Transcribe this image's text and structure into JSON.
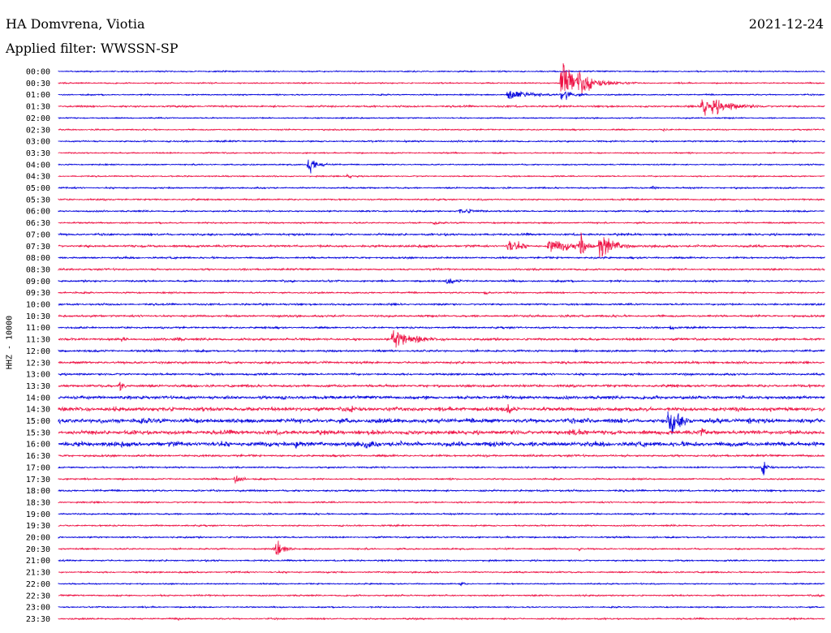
{
  "header": {
    "station": "HA Domvrena, Viotia",
    "date": "2021-12-24",
    "filter": "Applied filter: WWSSN-SP"
  },
  "channel_label": "HHZ - 10000",
  "colors": {
    "trace_a": "#0000dd",
    "trace_b": "#ee1144",
    "background": "#ffffff",
    "text": "#000000"
  },
  "chart_data": {
    "type": "line",
    "title": "HA Domvrena, Viotia",
    "ylabel": "HHZ - 10000",
    "xlabel": "",
    "grid": false,
    "rows": [
      {
        "time": "00:00",
        "color": "trace_a",
        "noise": 0.5
      },
      {
        "time": "00:30",
        "color": "trace_b",
        "noise": 0.5
      },
      {
        "time": "01:00",
        "color": "trace_a",
        "noise": 0.5
      },
      {
        "time": "01:30",
        "color": "trace_b",
        "noise": 0.7
      },
      {
        "time": "02:00",
        "color": "trace_a",
        "noise": 0.5
      },
      {
        "time": "02:30",
        "color": "trace_b",
        "noise": 0.5
      },
      {
        "time": "03:00",
        "color": "trace_a",
        "noise": 0.6
      },
      {
        "time": "03:30",
        "color": "trace_b",
        "noise": 0.5
      },
      {
        "time": "04:00",
        "color": "trace_a",
        "noise": 0.5
      },
      {
        "time": "04:30",
        "color": "trace_b",
        "noise": 0.5
      },
      {
        "time": "05:00",
        "color": "trace_a",
        "noise": 0.6
      },
      {
        "time": "05:30",
        "color": "trace_b",
        "noise": 0.6
      },
      {
        "time": "06:00",
        "color": "trace_a",
        "noise": 0.6
      },
      {
        "time": "06:30",
        "color": "trace_b",
        "noise": 0.6
      },
      {
        "time": "07:00",
        "color": "trace_a",
        "noise": 0.8
      },
      {
        "time": "07:30",
        "color": "trace_b",
        "noise": 0.9
      },
      {
        "time": "08:00",
        "color": "trace_a",
        "noise": 0.7
      },
      {
        "time": "08:30",
        "color": "trace_b",
        "noise": 0.7
      },
      {
        "time": "09:00",
        "color": "trace_a",
        "noise": 0.7
      },
      {
        "time": "09:30",
        "color": "trace_b",
        "noise": 0.6
      },
      {
        "time": "10:00",
        "color": "trace_a",
        "noise": 0.7
      },
      {
        "time": "10:30",
        "color": "trace_b",
        "noise": 0.8
      },
      {
        "time": "11:00",
        "color": "trace_a",
        "noise": 0.7
      },
      {
        "time": "11:30",
        "color": "trace_b",
        "noise": 0.9
      },
      {
        "time": "12:00",
        "color": "trace_a",
        "noise": 0.8
      },
      {
        "time": "12:30",
        "color": "trace_b",
        "noise": 0.9
      },
      {
        "time": "13:00",
        "color": "trace_a",
        "noise": 0.8
      },
      {
        "time": "13:30",
        "color": "trace_b",
        "noise": 1.0
      },
      {
        "time": "14:00",
        "color": "trace_a",
        "noise": 1.3
      },
      {
        "time": "14:30",
        "color": "trace_b",
        "noise": 1.6
      },
      {
        "time": "15:00",
        "color": "trace_a",
        "noise": 1.8
      },
      {
        "time": "15:30",
        "color": "trace_b",
        "noise": 1.7
      },
      {
        "time": "16:00",
        "color": "trace_a",
        "noise": 1.9
      },
      {
        "time": "16:30",
        "color": "trace_b",
        "noise": 0.8
      },
      {
        "time": "17:00",
        "color": "trace_a",
        "noise": 0.6
      },
      {
        "time": "17:30",
        "color": "trace_b",
        "noise": 0.6
      },
      {
        "time": "18:00",
        "color": "trace_a",
        "noise": 0.7
      },
      {
        "time": "18:30",
        "color": "trace_b",
        "noise": 0.6
      },
      {
        "time": "19:00",
        "color": "trace_a",
        "noise": 0.6
      },
      {
        "time": "19:30",
        "color": "trace_b",
        "noise": 0.6
      },
      {
        "time": "20:00",
        "color": "trace_a",
        "noise": 0.6
      },
      {
        "time": "20:30",
        "color": "trace_b",
        "noise": 0.6
      },
      {
        "time": "21:00",
        "color": "trace_a",
        "noise": 0.6
      },
      {
        "time": "21:30",
        "color": "trace_b",
        "noise": 0.6
      },
      {
        "time": "22:00",
        "color": "trace_a",
        "noise": 0.5
      },
      {
        "time": "22:30",
        "color": "trace_b",
        "noise": 0.6
      },
      {
        "time": "23:00",
        "color": "trace_a",
        "noise": 0.5
      },
      {
        "time": "23:30",
        "color": "trace_b",
        "noise": 0.6
      }
    ],
    "events": [
      {
        "row": "00:30",
        "minute": 19.7,
        "amplitude": 20,
        "duration_min": 1.6
      },
      {
        "row": "01:00",
        "minute": 17.6,
        "amplitude": 7,
        "duration_min": 1.5
      },
      {
        "row": "01:00",
        "minute": 19.7,
        "amplitude": 9,
        "duration_min": 0.7
      },
      {
        "row": "01:30",
        "minute": 25.2,
        "amplitude": 12,
        "duration_min": 1.8
      },
      {
        "row": "01:30",
        "minute": 4.3,
        "amplitude": 2,
        "duration_min": 0.4
      },
      {
        "row": "02:30",
        "minute": 23.7,
        "amplitude": 2,
        "duration_min": 0.4
      },
      {
        "row": "04:00",
        "minute": 9.8,
        "amplitude": 10,
        "duration_min": 0.6
      },
      {
        "row": "04:30",
        "minute": 11.3,
        "amplitude": 3,
        "duration_min": 0.6
      },
      {
        "row": "05:00",
        "minute": 23.3,
        "amplitude": 3,
        "duration_min": 0.4
      },
      {
        "row": "06:00",
        "minute": 15.7,
        "amplitude": 3,
        "duration_min": 1.5
      },
      {
        "row": "06:30",
        "minute": 14.7,
        "amplitude": 4,
        "duration_min": 0.2
      },
      {
        "row": "07:30",
        "minute": 17.6,
        "amplitude": 9,
        "duration_min": 0.8
      },
      {
        "row": "07:30",
        "minute": 19.2,
        "amplitude": 8,
        "duration_min": 1.8
      },
      {
        "row": "07:30",
        "minute": 20.4,
        "amplitude": 13,
        "duration_min": 0.5
      },
      {
        "row": "07:30",
        "minute": 21.2,
        "amplitude": 19,
        "duration_min": 0.9
      },
      {
        "row": "09:00",
        "minute": 15.2,
        "amplitude": 3,
        "duration_min": 1.2
      },
      {
        "row": "09:30",
        "minute": 16.7,
        "amplitude": 3,
        "duration_min": 0.3
      },
      {
        "row": "11:00",
        "minute": 24.0,
        "amplitude": 4,
        "duration_min": 0.3
      },
      {
        "row": "11:30",
        "minute": 13.1,
        "amplitude": 11,
        "duration_min": 1.5
      },
      {
        "row": "11:30",
        "minute": 2.5,
        "amplitude": 3,
        "duration_min": 0.5
      },
      {
        "row": "11:30",
        "minute": 4.6,
        "amplitude": 3,
        "duration_min": 0.6
      },
      {
        "row": "13:30",
        "minute": 2.4,
        "amplitude": 5,
        "duration_min": 0.5
      },
      {
        "row": "13:30",
        "minute": 24.0,
        "amplitude": 3,
        "duration_min": 0.4
      },
      {
        "row": "14:30",
        "minute": 2.1,
        "amplitude": 4,
        "duration_min": 0.6
      },
      {
        "row": "14:30",
        "minute": 17.6,
        "amplitude": 5,
        "duration_min": 0.7
      },
      {
        "row": "14:30",
        "minute": 11.5,
        "amplitude": 4,
        "duration_min": 1.0
      },
      {
        "row": "15:00",
        "minute": 23.9,
        "amplitude": 22,
        "duration_min": 0.7
      },
      {
        "row": "15:00",
        "minute": 20.6,
        "amplitude": 5,
        "duration_min": 0.6
      },
      {
        "row": "15:00",
        "minute": 27.0,
        "amplitude": 5,
        "duration_min": 0.5
      },
      {
        "row": "15:30",
        "minute": 25.2,
        "amplitude": 8,
        "duration_min": 0.4
      },
      {
        "row": "15:30",
        "minute": 20.0,
        "amplitude": 5,
        "duration_min": 1.5
      },
      {
        "row": "16:00",
        "minute": 9.3,
        "amplitude": 6,
        "duration_min": 0.8
      },
      {
        "row": "16:00",
        "minute": 12.0,
        "amplitude": 5,
        "duration_min": 1.2
      },
      {
        "row": "17:00",
        "minute": 27.6,
        "amplitude": 8,
        "duration_min": 0.4
      },
      {
        "row": "17:30",
        "minute": 6.9,
        "amplitude": 6,
        "duration_min": 0.5
      },
      {
        "row": "20:30",
        "minute": 8.5,
        "amplitude": 9,
        "duration_min": 0.6
      },
      {
        "row": "20:30",
        "minute": 20.4,
        "amplitude": 3,
        "duration_min": 0.2
      },
      {
        "row": "22:00",
        "minute": 15.7,
        "amplitude": 3,
        "duration_min": 0.4
      },
      {
        "row": "23:30",
        "minute": 4.7,
        "amplitude": 3,
        "duration_min": 0.2
      }
    ]
  }
}
